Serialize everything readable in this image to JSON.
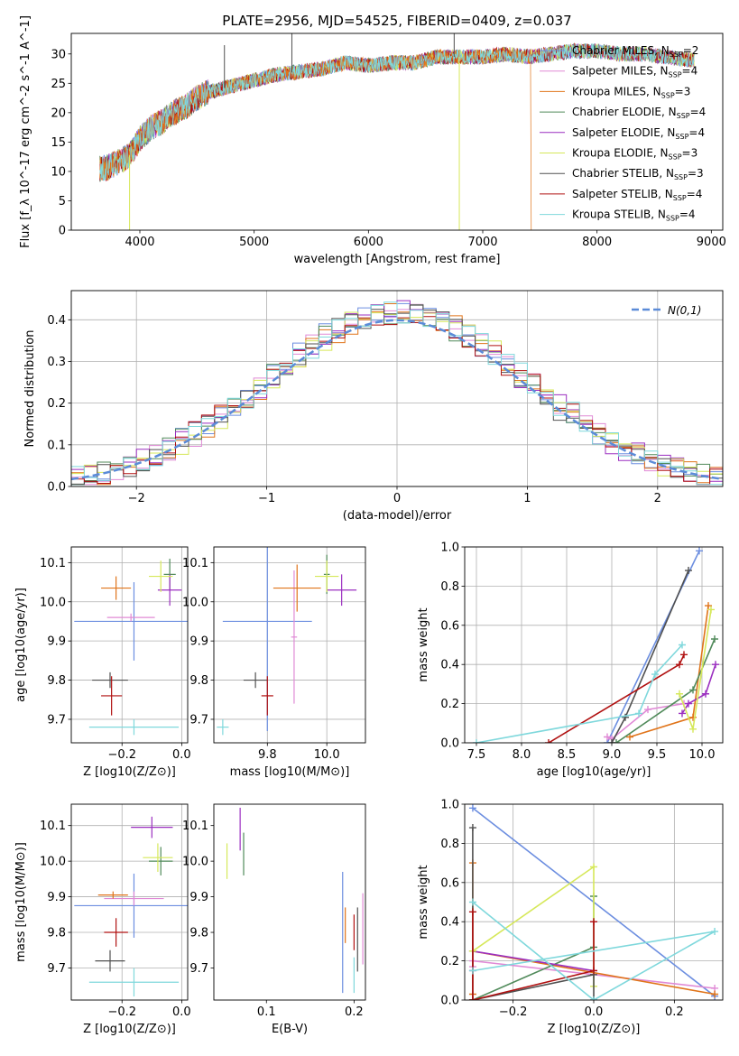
{
  "figure": {
    "title": "PLATE=2956, MJD=54525, FIBERID=0409, z=0.037"
  },
  "colors": {
    "Chabrier MILES": "#6c8ee0",
    "Salpeter MILES": "#e08ad6",
    "Kroupa MILES": "#e0741a",
    "Chabrier ELODIE": "#508a5a",
    "Salpeter ELODIE": "#9b2fc0",
    "Kroupa ELODIE": "#d6e85a",
    "Chabrier STELIB": "#505050",
    "Salpeter STELIB": "#b01010",
    "Kroupa STELIB": "#7fd8dc"
  },
  "chart_data": [
    {
      "id": "spectrum",
      "type": "line",
      "xlabel": "wavelength [Angstrom, rest frame]",
      "ylabel": "Flux [f_λ 10^-17 erg cm^-2 s^-1 A^-1]",
      "xlim": [
        3400,
        9100
      ],
      "ylim": [
        0,
        33.5
      ],
      "xticks": [
        4000,
        5000,
        6000,
        7000,
        8000,
        9000
      ],
      "yticks": [
        0,
        5,
        10,
        15,
        20,
        25,
        30
      ],
      "legend_position": "top-right",
      "continuum": {
        "x": [
          3650,
          3700,
          3800,
          3900,
          4000,
          4100,
          4200,
          4300,
          4400,
          4500,
          4600,
          4800,
          5000,
          5200,
          5400,
          5600,
          5800,
          6000,
          6200,
          6400,
          6600,
          6800,
          7000,
          7200,
          7400,
          7600,
          7800,
          8000,
          8200,
          8400,
          8600,
          8800
        ],
        "y": [
          10.5,
          10.5,
          11.5,
          12.5,
          15.5,
          17.5,
          18.5,
          20,
          21,
          22.5,
          23.5,
          24.5,
          25.5,
          26.5,
          27,
          27.5,
          28.5,
          28,
          28.5,
          28.5,
          29.5,
          29.5,
          29.5,
          30,
          29.5,
          30,
          30.5,
          30.5,
          30,
          30,
          29.5,
          29
        ]
      },
      "series": [
        {
          "name": "Chabrier MILES",
          "nssp": "2"
        },
        {
          "name": "Salpeter MILES",
          "nssp": "4"
        },
        {
          "name": "Kroupa MILES",
          "nssp": "3"
        },
        {
          "name": "Chabrier ELODIE",
          "nssp": "4"
        },
        {
          "name": "Salpeter ELODIE",
          "nssp": "4"
        },
        {
          "name": "Kroupa ELODIE",
          "nssp": "3"
        },
        {
          "name": "Chabrier STELIB",
          "nssp": "3"
        },
        {
          "name": "Salpeter STELIB",
          "nssp": "4"
        },
        {
          "name": "Kroupa STELIB",
          "nssp": "4"
        }
      ]
    },
    {
      "id": "residuals",
      "type": "line",
      "xlabel": "(data-model)/error",
      "ylabel": "Normed distribution",
      "xlim": [
        -2.5,
        2.5
      ],
      "ylim": [
        0,
        0.47
      ],
      "xticks": [
        -2,
        -1,
        0,
        1,
        2
      ],
      "yticks": [
        0.0,
        0.1,
        0.2,
        0.3,
        0.4
      ],
      "grid": true,
      "legend": "N(0,1)",
      "legend_position": "top-right",
      "bin_width": 0.1
    },
    {
      "id": "age_vs_Z",
      "type": "scatter",
      "xlabel": "Z [log10(Z/Z⊙)]",
      "ylabel": "age [log10(age/yr)]",
      "xlim": [
        -0.37,
        0.02
      ],
      "ylim": [
        9.64,
        10.14
      ],
      "xticks": [
        -0.2,
        0.0
      ],
      "yticks": [
        9.7,
        9.8,
        9.9,
        10.0,
        10.1
      ],
      "grid": true,
      "points": [
        {
          "s": "Chabrier MILES",
          "x": -0.16,
          "xe": 0.2,
          "y": 9.95,
          "ye": 0.1
        },
        {
          "s": "Salpeter MILES",
          "x": -0.17,
          "xe": 0.08,
          "y": 9.96,
          "ye": 0.01
        },
        {
          "s": "Kroupa MILES",
          "x": -0.22,
          "xe": 0.05,
          "y": 10.035,
          "ye": 0.03
        },
        {
          "s": "Chabrier ELODIE",
          "x": -0.04,
          "xe": 0.02,
          "y": 10.07,
          "ye": 0.04
        },
        {
          "s": "Salpeter ELODIE",
          "x": -0.04,
          "xe": 0.04,
          "y": 10.03,
          "ye": 0.04
        },
        {
          "s": "Kroupa ELODIE",
          "x": -0.07,
          "xe": 0.04,
          "y": 10.065,
          "ye": 0.04
        },
        {
          "s": "Chabrier STELIB",
          "x": -0.24,
          "xe": 0.06,
          "y": 9.8,
          "ye": 0.02
        },
        {
          "s": "Salpeter STELIB",
          "x": -0.235,
          "xe": 0.035,
          "y": 9.76,
          "ye": 0.05
        },
        {
          "s": "Kroupa STELIB",
          "x": -0.16,
          "xe": 0.15,
          "y": 9.68,
          "ye": 0.02
        }
      ]
    },
    {
      "id": "age_vs_mass",
      "type": "scatter",
      "xlabel": "mass [log10(M/M⊙)]",
      "ylabel": "",
      "xlim": [
        9.62,
        10.13
      ],
      "ylim": [
        9.64,
        10.14
      ],
      "xticks": [
        9.8,
        10.0
      ],
      "yticks": [
        9.7,
        9.8,
        9.9,
        10.0,
        10.1
      ],
      "grid": true,
      "points": [
        {
          "s": "Chabrier MILES",
          "x": 9.8,
          "xe": 0.15,
          "y": 9.95,
          "ye": 0.28
        },
        {
          "s": "Salpeter MILES",
          "x": 9.89,
          "xe": 0.01,
          "y": 9.91,
          "ye": 0.17
        },
        {
          "s": "Kroupa MILES",
          "x": 9.9,
          "xe": 0.08,
          "y": 10.035,
          "ye": 0.06
        },
        {
          "s": "Chabrier ELODIE",
          "x": 10.0,
          "xe": 0.01,
          "y": 10.07,
          "ye": 0.05
        },
        {
          "s": "Salpeter ELODIE",
          "x": 10.05,
          "xe": 0.05,
          "y": 10.03,
          "ye": 0.04
        },
        {
          "s": "Kroupa ELODIE",
          "x": 10.0,
          "xe": 0.04,
          "y": 10.065,
          "ye": 0.04
        },
        {
          "s": "Chabrier STELIB",
          "x": 9.76,
          "xe": 0.04,
          "y": 9.8,
          "ye": 0.02
        },
        {
          "s": "Salpeter STELIB",
          "x": 9.8,
          "xe": 0.02,
          "y": 9.76,
          "ye": 0.05
        },
        {
          "s": "Kroupa STELIB",
          "x": 9.65,
          "xe": 0.02,
          "y": 9.68,
          "ye": 0.02
        }
      ]
    },
    {
      "id": "weight_vs_age",
      "type": "line",
      "xlabel": "age [log10(age/yr)]",
      "ylabel": "mass weight",
      "xlim": [
        7.37,
        10.23
      ],
      "ylim": [
        0,
        1.0
      ],
      "xticks": [
        7.5,
        8.0,
        8.5,
        9.0,
        9.5,
        10.0
      ],
      "yticks": [
        0.0,
        0.2,
        0.4,
        0.6,
        0.8,
        1.0
      ],
      "grid": true,
      "series": [
        {
          "name": "Chabrier MILES",
          "x": [
            8.95,
            9.97
          ],
          "y": [
            0.0,
            0.98
          ]
        },
        {
          "name": "Salpeter MILES",
          "x": [
            8.95,
            9.0,
            9.4,
            9.8
          ],
          "y": [
            0.03,
            0.02,
            0.17,
            0.2
          ]
        },
        {
          "name": "Kroupa MILES",
          "x": [
            9.2,
            9.9,
            10.07
          ],
          "y": [
            0.03,
            0.13,
            0.7
          ]
        },
        {
          "name": "Chabrier ELODIE",
          "x": [
            9.05,
            9.9,
            10.14
          ],
          "y": [
            0.0,
            0.27,
            0.53
          ]
        },
        {
          "name": "Salpeter ELODIE",
          "x": [
            9.78,
            9.85,
            10.04,
            10.15
          ],
          "y": [
            0.15,
            0.2,
            0.25,
            0.4
          ]
        },
        {
          "name": "Kroupa ELODIE",
          "x": [
            9.75,
            9.9,
            10.1
          ],
          "y": [
            0.25,
            0.07,
            0.68
          ]
        },
        {
          "name": "Chabrier STELIB",
          "x": [
            9.0,
            9.15,
            9.85
          ],
          "y": [
            0.0,
            0.13,
            0.88
          ]
        },
        {
          "name": "Salpeter STELIB",
          "x": [
            8.3,
            9.75,
            9.8
          ],
          "y": [
            0.0,
            0.4,
            0.45
          ]
        },
        {
          "name": "Kroupa STELIB",
          "x": [
            7.5,
            9.3,
            9.48,
            9.78
          ],
          "y": [
            0.0,
            0.15,
            0.35,
            0.5
          ]
        }
      ]
    },
    {
      "id": "mass_vs_Z",
      "type": "scatter",
      "xlabel": "Z [log10(Z/Z⊙)]",
      "ylabel": "mass [log10(M/M⊙)]",
      "xlim": [
        -0.37,
        0.02
      ],
      "ylim": [
        9.61,
        10.16
      ],
      "xticks": [
        -0.2,
        0.0
      ],
      "yticks": [
        9.7,
        9.8,
        9.9,
        10.0,
        10.1
      ],
      "grid": true,
      "points": [
        {
          "s": "Chabrier MILES",
          "x": -0.16,
          "xe": 0.2,
          "y": 9.875,
          "ye": 0.09
        },
        {
          "s": "Salpeter MILES",
          "x": -0.16,
          "xe": 0.1,
          "y": 9.895,
          "ye": 0.02
        },
        {
          "s": "Kroupa MILES",
          "x": -0.23,
          "xe": 0.05,
          "y": 9.905,
          "ye": 0.01
        },
        {
          "s": "Chabrier ELODIE",
          "x": -0.07,
          "xe": 0.04,
          "y": 10.0,
          "ye": 0.04
        },
        {
          "s": "Salpeter ELODIE",
          "x": -0.1,
          "xe": 0.07,
          "y": 10.095,
          "ye": 0.03
        },
        {
          "s": "Kroupa ELODIE",
          "x": -0.08,
          "xe": 0.05,
          "y": 10.01,
          "ye": 0.04
        },
        {
          "s": "Chabrier STELIB",
          "x": -0.24,
          "xe": 0.05,
          "y": 9.72,
          "ye": 0.03
        },
        {
          "s": "Salpeter STELIB",
          "x": -0.22,
          "xe": 0.04,
          "y": 9.8,
          "ye": 0.04
        },
        {
          "s": "Kroupa STELIB",
          "x": -0.16,
          "xe": 0.15,
          "y": 9.66,
          "ye": 0.04
        }
      ]
    },
    {
      "id": "mass_vs_ebv",
      "type": "scatter",
      "xlabel": "E(B-V)",
      "ylabel": "",
      "xlim": [
        0.04,
        0.213
      ],
      "ylim": [
        9.61,
        10.16
      ],
      "xticks": [
        0.1,
        0.2
      ],
      "yticks": [
        9.7,
        9.8,
        9.9,
        10.0,
        10.1
      ],
      "points": [
        {
          "s": "Chabrier MILES",
          "x": 0.187,
          "xe": 0.0,
          "y": 9.8,
          "ye": 0.17
        },
        {
          "s": "Salpeter MILES",
          "x": 0.21,
          "xe": 0.0,
          "y": 9.81,
          "ye": 0.1
        },
        {
          "s": "Kroupa MILES",
          "x": 0.19,
          "xe": 0.0,
          "y": 9.82,
          "ye": 0.05
        },
        {
          "s": "Chabrier ELODIE",
          "x": 0.074,
          "xe": 0.0,
          "y": 10.02,
          "ye": 0.06
        },
        {
          "s": "Salpeter ELODIE",
          "x": 0.07,
          "xe": 0.0,
          "y": 10.09,
          "ye": 0.06
        },
        {
          "s": "Kroupa ELODIE",
          "x": 0.055,
          "xe": 0.0,
          "y": 10.0,
          "ye": 0.05
        },
        {
          "s": "Chabrier STELIB",
          "x": 0.204,
          "xe": 0.0,
          "y": 9.78,
          "ye": 0.09
        },
        {
          "s": "Salpeter STELIB",
          "x": 0.2,
          "xe": 0.0,
          "y": 9.8,
          "ye": 0.05
        },
        {
          "s": "Kroupa STELIB",
          "x": 0.2,
          "xe": 0.0,
          "y": 9.68,
          "ye": 0.05
        }
      ]
    },
    {
      "id": "weight_vs_Z",
      "type": "line",
      "xlabel": "Z [log10(Z/Z⊙)]",
      "ylabel": "mass weight",
      "xlim": [
        -0.32,
        0.32
      ],
      "ylim": [
        0,
        1.0
      ],
      "xticks": [
        -0.2,
        0.0,
        0.2
      ],
      "yticks": [
        0.0,
        0.2,
        0.4,
        0.6,
        0.8,
        1.0
      ],
      "grid": true,
      "series": [
        {
          "name": "Chabrier MILES",
          "x": [
            -0.3,
            0.3
          ],
          "y": [
            0.98,
            0.02
          ]
        },
        {
          "name": "Salpeter MILES",
          "x": [
            -0.3,
            -0.3,
            0.3
          ],
          "y": [
            0.17,
            0.2,
            0.06
          ]
        },
        {
          "name": "Kroupa MILES",
          "x": [
            -0.3,
            -0.3,
            -0.3,
            0.3
          ],
          "y": [
            0.7,
            0.03,
            0.25,
            0.03
          ]
        },
        {
          "name": "Chabrier ELODIE",
          "x": [
            -0.3,
            0.0,
            0.0
          ],
          "y": [
            0.0,
            0.27,
            0.53
          ]
        },
        {
          "name": "Salpeter ELODIE",
          "x": [
            -0.3,
            -0.3,
            0.0,
            0.0
          ],
          "y": [
            0.15,
            0.25,
            0.15,
            0.4
          ]
        },
        {
          "name": "Kroupa ELODIE",
          "x": [
            -0.3,
            0.0,
            0.0
          ],
          "y": [
            0.25,
            0.68,
            0.07
          ]
        },
        {
          "name": "Chabrier STELIB",
          "x": [
            -0.3,
            -0.3,
            0.0,
            0.0
          ],
          "y": [
            0.88,
            0.0,
            0.13,
            0.0
          ]
        },
        {
          "name": "Salpeter STELIB",
          "x": [
            -0.3,
            -0.3,
            0.0,
            0.0
          ],
          "y": [
            0.45,
            0.0,
            0.15,
            0.4
          ]
        },
        {
          "name": "Kroupa STELIB",
          "x": [
            -0.3,
            0.0,
            0.3,
            -0.3
          ],
          "y": [
            0.5,
            0.0,
            0.35,
            0.15
          ]
        }
      ]
    }
  ]
}
